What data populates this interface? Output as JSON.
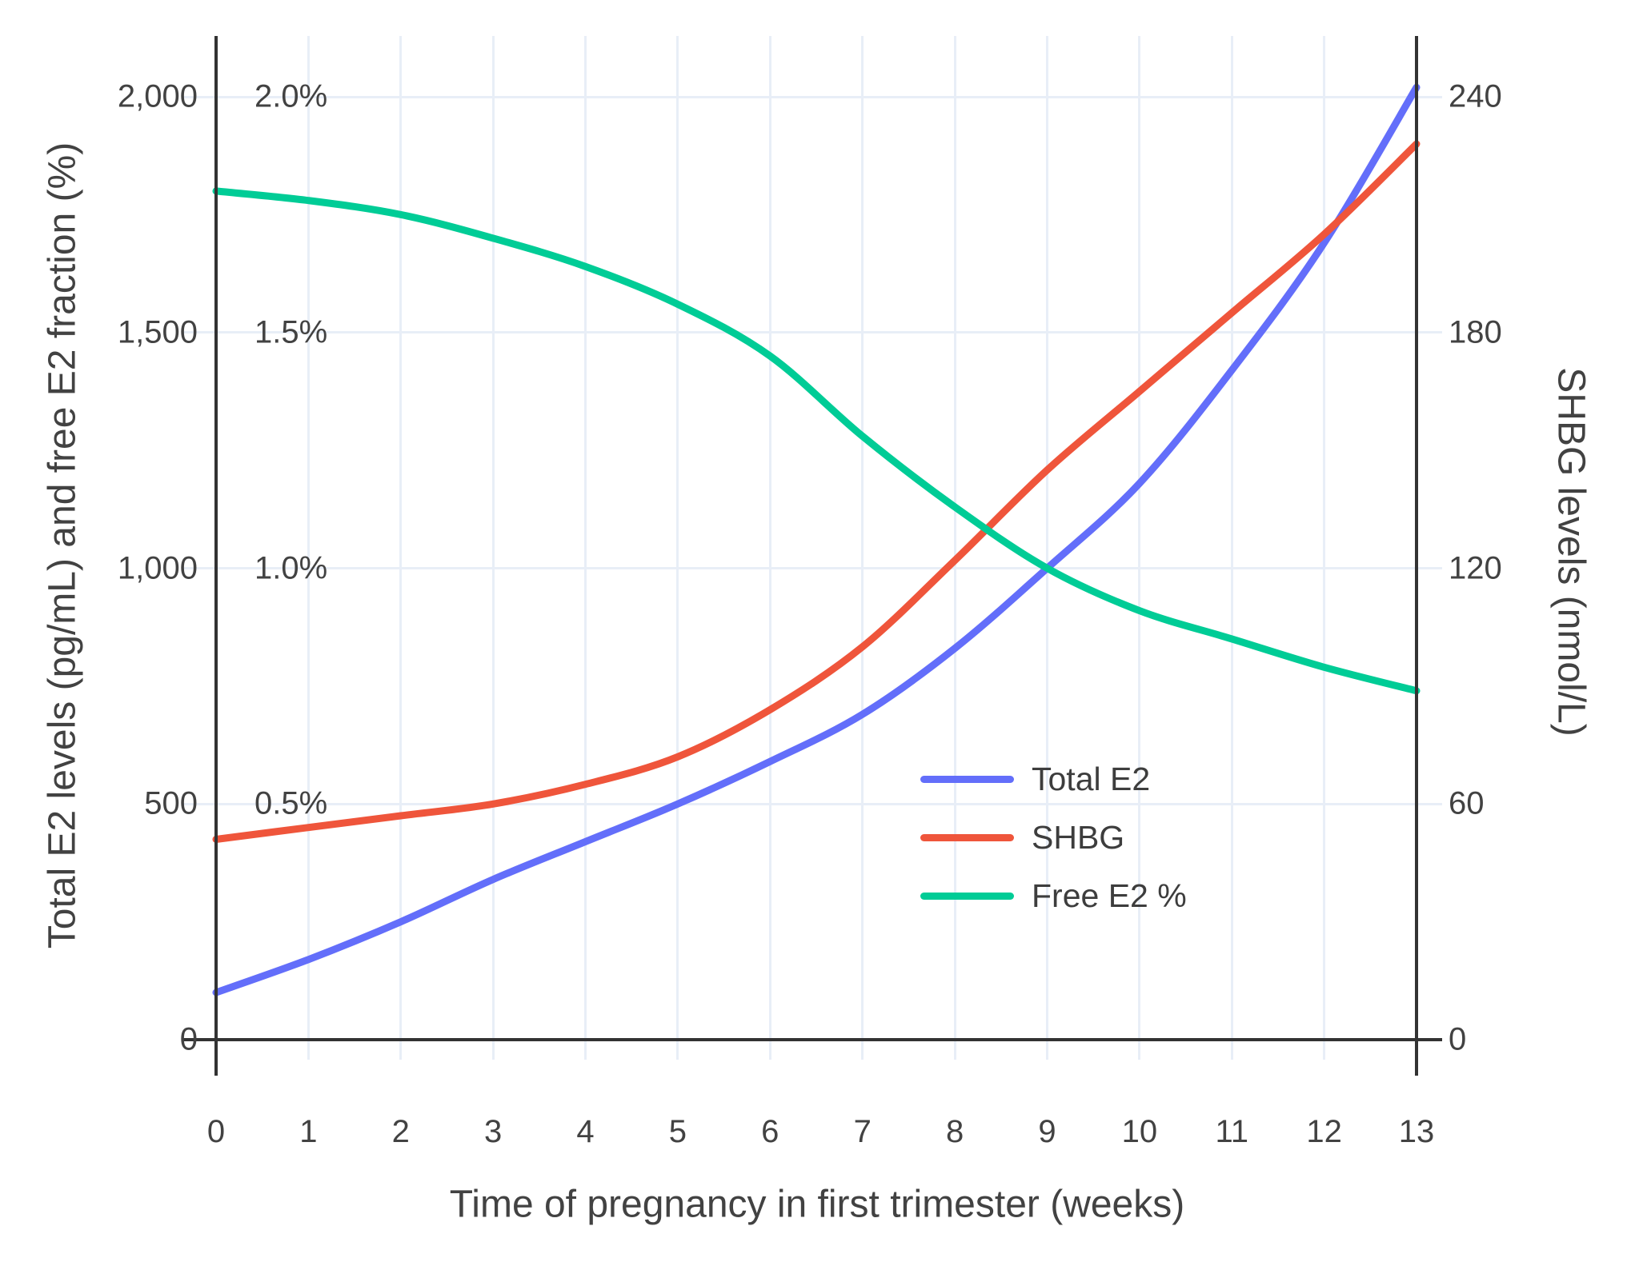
{
  "chart_data": {
    "type": "line",
    "title": "",
    "xlabel": "Time of pregnancy in first trimester (weeks)",
    "ylabel_left": "Total E2 levels (pg/mL) and free E2 fraction (%)",
    "ylabel_right": "SHBG levels (nmol/L)",
    "x": [
      0,
      1,
      2,
      3,
      4,
      5,
      6,
      7,
      8,
      9,
      10,
      11,
      12,
      13
    ],
    "x_tick_labels": [
      "0",
      "1",
      "2",
      "3",
      "4",
      "5",
      "6",
      "7",
      "8",
      "9",
      "10",
      "11",
      "12",
      "13"
    ],
    "series": [
      {
        "name": "Total E2",
        "axis": "left",
        "unit": "pg/mL",
        "color": "#636EFA",
        "values": [
          100,
          170,
          250,
          340,
          420,
          500,
          590,
          690,
          830,
          1000,
          1180,
          1420,
          1690,
          2020
        ]
      },
      {
        "name": "SHBG",
        "axis": "right",
        "unit": "nmol/L",
        "color": "#EF553B",
        "values": [
          51,
          54,
          57,
          60,
          65,
          72,
          84,
          100,
          122,
          145,
          165,
          185,
          205,
          228
        ]
      },
      {
        "name": "Free E2 %",
        "axis": "left_percent",
        "unit": "%",
        "color": "#00CC96",
        "values": [
          1.8,
          1.78,
          1.75,
          1.7,
          1.64,
          1.56,
          1.45,
          1.28,
          1.13,
          1.0,
          0.91,
          0.85,
          0.79,
          0.74
        ]
      }
    ],
    "left_axis": {
      "tick_labels": [
        "0",
        "500",
        "1,000",
        "1,500",
        "2,000"
      ],
      "tick_values": [
        0,
        500,
        1000,
        1500,
        2000
      ],
      "range": [
        0,
        2130
      ]
    },
    "percent_labels": {
      "labels": [
        "0.5%",
        "1.0%",
        "1.5%",
        "2.0%"
      ],
      "values": [
        0.5,
        1.0,
        1.5,
        2.0
      ]
    },
    "right_axis": {
      "tick_labels": [
        "0",
        "60",
        "120",
        "180",
        "240"
      ],
      "tick_values": [
        0,
        60,
        120,
        180,
        240
      ],
      "range": [
        0,
        255
      ]
    },
    "legend": {
      "position": "inside-right-middle",
      "entries": [
        "Total E2",
        "SHBG",
        "Free E2 %"
      ]
    },
    "grid": true,
    "colors": {
      "grid": "#E8EEF7",
      "axis_line": "#333333",
      "text": "#424242",
      "background": "#FFFFFF"
    }
  }
}
